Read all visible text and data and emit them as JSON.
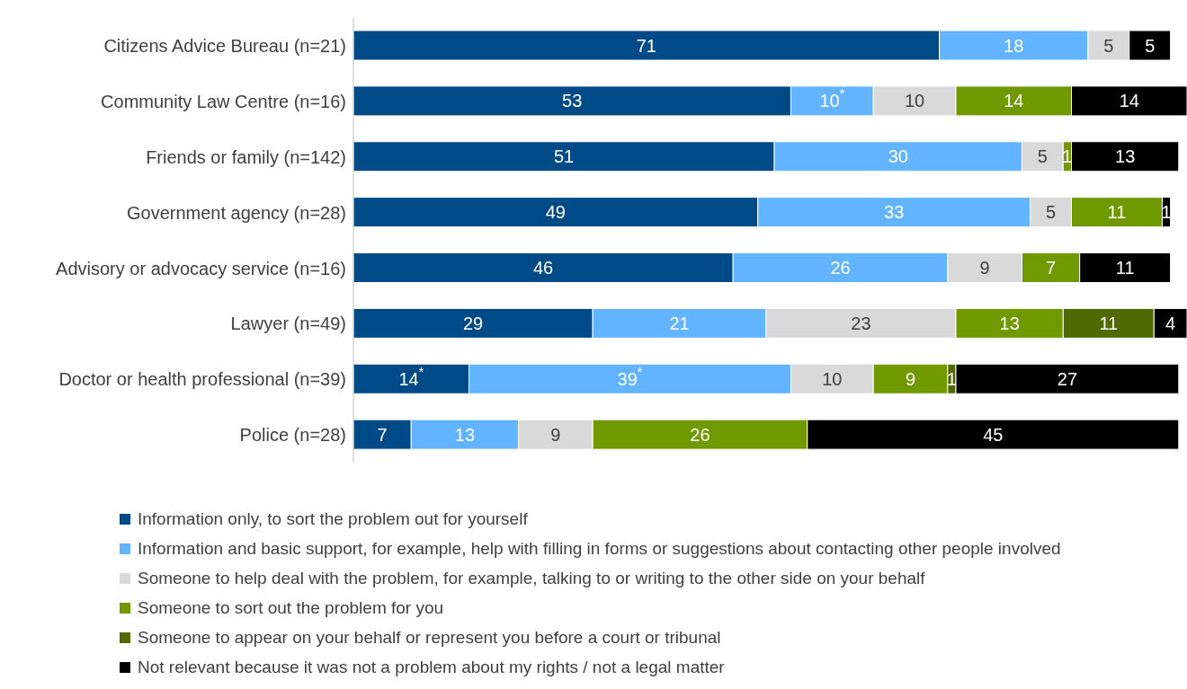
{
  "chart_data": {
    "type": "bar",
    "orientation": "horizontal",
    "stacked": true,
    "legend": "bottom",
    "grid": false,
    "categories": [
      "Citizens Advice Bureau (n=21)",
      "Community Law Centre (n=16)",
      "Friends or family (n=142)",
      "Government agency (n=28)",
      "Advisory or advocacy service (n=16)",
      "Lawyer (n=49)",
      "Doctor or health professional (n=39)",
      "Police (n=28)"
    ],
    "series": [
      {
        "name": "Information only, to sort the problem out for yourself",
        "color": "#004b87",
        "values": [
          71,
          53,
          51,
          49,
          46,
          29,
          14,
          7
        ],
        "value_labels": [
          "71",
          "53",
          "51",
          "49",
          "46",
          "29",
          "14$^{*}$",
          "7"
        ]
      },
      {
        "name": "Information and basic support, for example, help with filling in forms or suggestions about contacting other people involved",
        "color": "#63b4ff",
        "values": [
          18,
          10,
          30,
          33,
          26,
          21,
          39,
          13
        ],
        "value_labels": [
          "18",
          "10$^{*}$",
          "30",
          "33",
          "26",
          "21",
          "39$^{*}$",
          "13"
        ]
      },
      {
        "name": "Someone to help deal with the problem, for example, talking to or writing to the other side on your behalf",
        "color": "#d9d9d9",
        "values": [
          5,
          10,
          5,
          5,
          9,
          23,
          10,
          9
        ],
        "value_labels": [
          "5",
          "10",
          "5",
          "5",
          "9",
          "23",
          "10",
          "9"
        ]
      },
      {
        "name": "Someone to sort out the problem for you",
        "color": "#709900",
        "values": [
          null,
          14,
          1,
          11,
          7,
          13,
          9,
          26
        ],
        "value_labels": [
          null,
          "14",
          "1",
          "11",
          "7",
          "13",
          "9",
          "26"
        ]
      },
      {
        "name": "Someone to appear on your behalf or represent you before a court or tribunal",
        "color": "#4f6b00",
        "values": [
          null,
          null,
          null,
          null,
          null,
          11,
          1,
          null
        ],
        "value_labels": [
          null,
          null,
          null,
          null,
          null,
          "11",
          "1",
          null
        ]
      },
      {
        "name": "Not relevant because it was not a problem about my rights / not a legal matter",
        "color": "#000000",
        "values": [
          5,
          14,
          13,
          1,
          11,
          4,
          27,
          45
        ],
        "value_labels": [
          "5",
          "14",
          "13",
          "1",
          "11",
          "4",
          "27",
          "45"
        ]
      }
    ]
  }
}
